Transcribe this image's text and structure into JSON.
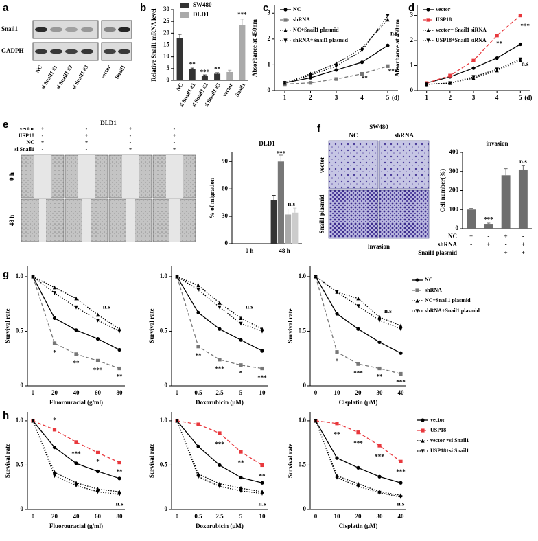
{
  "panel_labels": [
    "a",
    "b",
    "c",
    "d",
    "e",
    "f",
    "g",
    "h"
  ],
  "blot": {
    "rows": [
      "Snail1",
      "GADPH"
    ],
    "lanes": [
      "NC",
      "si Snail1 #1",
      "si Snail1 #2",
      "si Snail1 #3",
      "vector",
      "Snail1"
    ]
  },
  "migration": {
    "title": "DLD1",
    "times": [
      "0 h",
      "48 h"
    ],
    "conditions": [
      {
        "label": "vector",
        "marks": [
          "+",
          "-",
          "+",
          "-"
        ]
      },
      {
        "label": "USP18",
        "marks": [
          "-",
          "+",
          "-",
          "+"
        ]
      },
      {
        "label": "NC",
        "marks": [
          "+",
          "+",
          "-",
          "-"
        ]
      },
      {
        "label": "si Snail1",
        "marks": [
          "-",
          "-",
          "+",
          "+"
        ]
      }
    ]
  },
  "invasion_images": {
    "title": "SW480",
    "columns": [
      "NC",
      "shRNA"
    ],
    "rows": [
      "vector",
      "Snail1 plasmid"
    ],
    "caption": "invasion"
  },
  "chart_data": [
    {
      "type": "bar",
      "ylabel": "Relative Snail1 mRNA level",
      "categories": [
        "NC",
        "si Snail1 #1",
        "si Snail1 #2",
        "si Snail1 #3",
        "vector",
        "Snail1"
      ],
      "series": [
        {
          "name": "SW480",
          "color": "#333333",
          "values": [
            18,
            4.8,
            2,
            2.8,
            null,
            null
          ],
          "errors": [
            1.5,
            0.4,
            0.3,
            0.4,
            null,
            null
          ]
        },
        {
          "name": "DLD1",
          "color": "#aaaaaa",
          "values": [
            null,
            null,
            null,
            null,
            3.5,
            23.5
          ],
          "errors": [
            null,
            null,
            null,
            null,
            0.8,
            2.5
          ]
        }
      ],
      "ylim": [
        0,
        30
      ],
      "yticks": [
        0,
        5,
        10,
        15,
        20,
        25,
        30
      ],
      "annotations": [
        {
          "text": "**",
          "x": 1,
          "y": 6.5
        },
        {
          "text": "***",
          "x": 2,
          "y": 3.2
        },
        {
          "text": "**",
          "x": 3,
          "y": 4.6
        },
        {
          "text": "***",
          "x": 5,
          "y": 27.5
        }
      ]
    },
    {
      "type": "line",
      "ylabel": "Absorbance at 450nm",
      "xlabel": "(d)",
      "x": [
        1,
        2,
        3,
        4,
        5
      ],
      "xlim": [
        0.6,
        5.4
      ],
      "xticks": [
        1,
        2,
        3,
        4,
        5
      ],
      "ylim": [
        0,
        3.3
      ],
      "yticks": [
        0,
        1,
        2,
        3
      ],
      "series": [
        {
          "name": "NC",
          "color": "#000000",
          "line_style": "solid",
          "marker": "circle",
          "values": [
            0.3,
            0.5,
            0.8,
            1.1,
            1.75
          ]
        },
        {
          "name": "shRNA",
          "color": "#777777",
          "line_style": "dashed",
          "marker": "square",
          "values": [
            0.25,
            0.3,
            0.45,
            0.65,
            0.95
          ]
        },
        {
          "name": "NC+Snail1 plasmid",
          "color": "#000000",
          "line_style": "dotted",
          "marker": "triangle-up",
          "values": [
            0.3,
            0.65,
            1.05,
            1.65,
            2.75
          ]
        },
        {
          "name": "shRNA+Snail1 plasmid",
          "color": "#000000",
          "line_style": "dotted",
          "marker": "triangle-down",
          "values": [
            0.3,
            0.6,
            0.95,
            1.55,
            2.9
          ]
        }
      ],
      "annotations": [
        {
          "text": "n.s",
          "x": 5.25,
          "y": 2.2
        },
        {
          "text": "**",
          "x": 4.1,
          "y": 0.45
        },
        {
          "text": "***",
          "x": 5.2,
          "y": 0.72
        }
      ]
    },
    {
      "type": "line",
      "ylabel": "Absorbance at 450nm",
      "xlabel": "(d)",
      "x": [
        1,
        2,
        3,
        4,
        5
      ],
      "xlim": [
        0.6,
        5.4
      ],
      "xticks": [
        1,
        2,
        3,
        4,
        5
      ],
      "ylim": [
        0,
        3.4
      ],
      "yticks": [
        0,
        1,
        2,
        3
      ],
      "series": [
        {
          "name": "vector",
          "color": "#000000",
          "line_style": "solid",
          "marker": "circle",
          "values": [
            0.3,
            0.55,
            0.9,
            1.3,
            1.85
          ]
        },
        {
          "name": "USP18",
          "color": "#e8383d",
          "line_style": "dashed",
          "marker": "square",
          "values": [
            0.3,
            0.6,
            1.2,
            2.2,
            3.0
          ]
        },
        {
          "name": "vector+ Snail1 siRNA",
          "color": "#000000",
          "line_style": "dotted",
          "marker": "triangle-up",
          "values": [
            0.25,
            0.3,
            0.5,
            0.8,
            1.2
          ]
        },
        {
          "name": "USP18+Snail1 siRNA",
          "color": "#000000",
          "line_style": "dotted",
          "marker": "triangle-down",
          "values": [
            0.25,
            0.3,
            0.55,
            0.85,
            1.25
          ]
        }
      ],
      "annotations": [
        {
          "text": "**",
          "x": 4.1,
          "y": 1.85
        },
        {
          "text": "***",
          "x": 5.2,
          "y": 2.55
        },
        {
          "text": "n.s",
          "x": 5.2,
          "y": 1.05
        }
      ]
    },
    {
      "type": "bar",
      "title": "DLD1",
      "ylabel": "% of migration",
      "categories": [
        "0 h",
        "48 h"
      ],
      "series": [
        {
          "color": "#333333",
          "values": [
            0,
            48
          ],
          "errors": [
            null,
            5
          ]
        },
        {
          "color": "#777777",
          "values": [
            0,
            90
          ],
          "errors": [
            null,
            7
          ]
        },
        {
          "color": "#aaaaaa",
          "values": [
            0,
            32
          ],
          "errors": [
            null,
            6
          ]
        },
        {
          "color": "#cccccc",
          "values": [
            0,
            34
          ],
          "errors": [
            null,
            5
          ]
        }
      ],
      "ylim": [
        0,
        100
      ],
      "yticks": [
        0,
        30,
        60,
        90
      ],
      "annotations": [
        {
          "text": "***",
          "x": 0.9,
          "y": 98
        },
        {
          "text": "n.s",
          "x": 1.2,
          "y": 43
        }
      ]
    },
    {
      "type": "bar",
      "title": "invasion",
      "ylabel": "Cell number(%)",
      "categories": [
        null,
        null,
        null,
        null
      ],
      "series": [
        {
          "color": "#6e6e6e",
          "values": [
            100,
            25,
            280,
            310
          ],
          "errors": [
            6,
            4,
            35,
            20
          ]
        }
      ],
      "ylim": [
        0,
        400
      ],
      "yticks": [
        0,
        100,
        200,
        300,
        400
      ],
      "annotations": [
        {
          "text": "***",
          "x": 1,
          "y": 45
        },
        {
          "text": "n.s",
          "x": 3,
          "y": 350
        }
      ],
      "condition_table": [
        {
          "label": "NC",
          "marks": [
            "+",
            "-",
            "+",
            "-"
          ]
        },
        {
          "label": "shRNA",
          "marks": [
            "-",
            "+",
            "-",
            "+"
          ]
        },
        {
          "label": "Snail1 plasmid",
          "marks": [
            "-",
            "-",
            "+",
            "+"
          ]
        }
      ]
    },
    {
      "type": "line",
      "xlabel": "Fluorouracial (g/ml)",
      "ylabel": "Survival rate",
      "categories": [
        "0",
        "20",
        "40",
        "60",
        "80"
      ],
      "ylim": [
        0,
        1.1
      ],
      "yticks": [
        0,
        0.5,
        {
          "value": 1,
          "label": "1.0"
        }
      ],
      "series": [
        {
          "color": "#000000",
          "line_style": "solid",
          "marker": "circle",
          "values": [
            1,
            0.62,
            0.51,
            0.43,
            0.33
          ]
        },
        {
          "color": "#777777",
          "line_style": "dashed",
          "marker": "square",
          "values": [
            1,
            0.39,
            0.29,
            0.23,
            0.16
          ]
        },
        {
          "color": "#000000",
          "line_style": "dotted",
          "marker": "triangle-up",
          "values": [
            1,
            0.9,
            0.8,
            0.65,
            0.52
          ]
        },
        {
          "color": "#000000",
          "line_style": "dotted",
          "marker": "triangle-down",
          "values": [
            1,
            0.85,
            0.72,
            0.6,
            0.5
          ]
        }
      ],
      "annotations": [
        {
          "text": "*",
          "x": 1,
          "y": 0.3
        },
        {
          "text": "**",
          "x": 2,
          "y": 0.2
        },
        {
          "text": "***",
          "x": 3,
          "y": 0.14
        },
        {
          "text": "**",
          "x": 4,
          "y": 0.08
        },
        {
          "text": "n.s",
          "x": 3.4,
          "y": 0.72
        }
      ]
    },
    {
      "type": "line",
      "xlabel": "Doxorubicin (μM)",
      "ylabel": "Survival rate",
      "categories": [
        "0",
        "0.5",
        "2.5",
        "5",
        "10"
      ],
      "ylim": [
        0,
        1.1
      ],
      "yticks": [
        0,
        0.5,
        {
          "value": 1,
          "label": "1.0"
        }
      ],
      "series": [
        {
          "color": "#000000",
          "line_style": "solid",
          "marker": "circle",
          "values": [
            1,
            0.67,
            0.52,
            0.42,
            0.32
          ]
        },
        {
          "color": "#777777",
          "line_style": "dashed",
          "marker": "square",
          "values": [
            1,
            0.36,
            0.24,
            0.19,
            0.16
          ]
        },
        {
          "color": "#000000",
          "line_style": "dotted",
          "marker": "triangle-up",
          "values": [
            1,
            0.92,
            0.76,
            0.62,
            0.52
          ]
        },
        {
          "color": "#000000",
          "line_style": "dotted",
          "marker": "triangle-down",
          "values": [
            1,
            0.88,
            0.72,
            0.57,
            0.5
          ]
        }
      ],
      "annotations": [
        {
          "text": "**",
          "x": 1,
          "y": 0.27
        },
        {
          "text": "***",
          "x": 2,
          "y": 0.15
        },
        {
          "text": "*",
          "x": 3,
          "y": 0.11
        },
        {
          "text": "***",
          "x": 4,
          "y": 0.07
        },
        {
          "text": "n.s",
          "x": 3.4,
          "y": 0.72
        }
      ]
    },
    {
      "type": "line",
      "xlabel": "Cisplatin (μM)",
      "ylabel": "Survival rate",
      "categories": [
        "0",
        "10",
        "20",
        "30",
        "40"
      ],
      "ylim": [
        0,
        1.1
      ],
      "yticks": [
        0,
        0.5,
        {
          "value": 1,
          "label": "1.0"
        }
      ],
      "series": [
        {
          "name": "NC",
          "color": "#000000",
          "line_style": "solid",
          "marker": "circle",
          "values": [
            1,
            0.66,
            0.52,
            0.4,
            0.3
          ]
        },
        {
          "name": "shRNA",
          "color": "#777777",
          "line_style": "dashed",
          "marker": "square",
          "values": [
            1,
            0.31,
            0.2,
            0.16,
            0.11
          ]
        },
        {
          "name": "NC+Snail1 plasmid",
          "color": "#000000",
          "line_style": "dotted",
          "marker": "triangle-up",
          "values": [
            1,
            0.86,
            0.8,
            0.63,
            0.55
          ]
        },
        {
          "name": "shRNA+Snail1 plasmid",
          "color": "#000000",
          "line_style": "dotted",
          "marker": "triangle-down",
          "values": [
            1,
            0.86,
            0.73,
            0.6,
            0.52
          ]
        }
      ],
      "annotations": [
        {
          "text": "*",
          "x": 1,
          "y": 0.22
        },
        {
          "text": "***",
          "x": 2,
          "y": 0.11
        },
        {
          "text": "**",
          "x": 3,
          "y": 0.08
        },
        {
          "text": "***",
          "x": 4,
          "y": 0.03
        },
        {
          "text": "n.s",
          "x": 3.4,
          "y": 0.68
        }
      ]
    },
    {
      "type": "line",
      "xlabel": "Fluorouracial (g/ml)",
      "ylabel": "Survival rate",
      "categories": [
        "0",
        "20",
        "40",
        "60",
        "80"
      ],
      "ylim": [
        0,
        1.1
      ],
      "yticks": [
        0,
        0.5,
        {
          "value": 1,
          "label": "1.0"
        }
      ],
      "series": [
        {
          "color": "#000000",
          "line_style": "solid",
          "marker": "circle",
          "values": [
            1,
            0.7,
            0.52,
            0.43,
            0.35
          ]
        },
        {
          "color": "#e8383d",
          "line_style": "dashed",
          "marker": "square",
          "values": [
            1,
            0.9,
            0.76,
            0.64,
            0.53
          ]
        },
        {
          "color": "#000000",
          "line_style": "dotted",
          "marker": "triangle-up",
          "values": [
            1,
            0.42,
            0.3,
            0.23,
            0.2
          ]
        },
        {
          "color": "#000000",
          "line_style": "dotted",
          "marker": "triangle-down",
          "values": [
            1,
            0.38,
            0.27,
            0.2,
            0.17
          ]
        }
      ],
      "annotations": [
        {
          "text": "*",
          "x": 1,
          "y": 1.0
        },
        {
          "text": "***",
          "x": 2,
          "y": 0.62
        },
        {
          "text": "*",
          "x": 3,
          "y": 0.53
        },
        {
          "text": "**",
          "x": 4,
          "y": 0.42
        },
        {
          "text": "n.s",
          "x": 4,
          "y": 0.06
        }
      ]
    },
    {
      "type": "line",
      "xlabel": "Doxorubicin (μM)",
      "ylabel": "Survival rate",
      "categories": [
        "0",
        "0.5",
        "2.5",
        "5",
        "10"
      ],
      "ylim": [
        0,
        1.1
      ],
      "yticks": [
        0,
        0.5,
        {
          "value": 1,
          "label": "1.0"
        }
      ],
      "series": [
        {
          "color": "#000000",
          "line_style": "solid",
          "marker": "circle",
          "values": [
            1,
            0.71,
            0.5,
            0.36,
            0.3
          ]
        },
        {
          "color": "#e8383d",
          "line_style": "dashed",
          "marker": "square",
          "values": [
            1,
            0.96,
            0.86,
            0.65,
            0.5
          ]
        },
        {
          "color": "#000000",
          "line_style": "dotted",
          "marker": "triangle-up",
          "values": [
            1,
            0.4,
            0.29,
            0.24,
            0.2
          ]
        },
        {
          "color": "#000000",
          "line_style": "dotted",
          "marker": "triangle-down",
          "values": [
            1,
            0.37,
            0.26,
            0.21,
            0.18
          ]
        }
      ],
      "annotations": [
        {
          "text": "***",
          "x": 2,
          "y": 0.73
        },
        {
          "text": "**",
          "x": 3,
          "y": 0.52
        },
        {
          "text": "**",
          "x": 4,
          "y": 0.37
        },
        {
          "text": "n.s",
          "x": 4,
          "y": 0.06
        }
      ]
    },
    {
      "type": "line",
      "xlabel": "Cisplatin (μM)",
      "ylabel": "Survival rate",
      "categories": [
        "0",
        "10",
        "20",
        "30",
        "40"
      ],
      "ylim": [
        0,
        1.1
      ],
      "yticks": [
        0,
        0.5,
        {
          "value": 1,
          "label": "1.0"
        }
      ],
      "series": [
        {
          "name": "vector",
          "color": "#000000",
          "line_style": "solid",
          "marker": "circle",
          "values": [
            1,
            0.58,
            0.47,
            0.37,
            0.3
          ]
        },
        {
          "name": "USP18",
          "color": "#e8383d",
          "line_style": "dashed",
          "marker": "square",
          "values": [
            1,
            0.97,
            0.87,
            0.72,
            0.54
          ]
        },
        {
          "name": "vector +si Snail1",
          "color": "#000000",
          "line_style": "dotted",
          "marker": "triangle-up",
          "values": [
            1,
            0.38,
            0.29,
            0.2,
            0.16
          ]
        },
        {
          "name": "USP18+si Snail1",
          "color": "#000000",
          "line_style": "dotted",
          "marker": "triangle-down",
          "values": [
            1,
            0.36,
            0.26,
            0.19,
            0.14
          ]
        }
      ],
      "annotations": [
        {
          "text": "**",
          "x": 1,
          "y": 0.84
        },
        {
          "text": "***",
          "x": 2,
          "y": 0.74
        },
        {
          "text": "***",
          "x": 3,
          "y": 0.59
        },
        {
          "text": "***",
          "x": 4,
          "y": 0.42
        },
        {
          "text": "n.s",
          "x": 4,
          "y": 0.06
        }
      ]
    }
  ]
}
